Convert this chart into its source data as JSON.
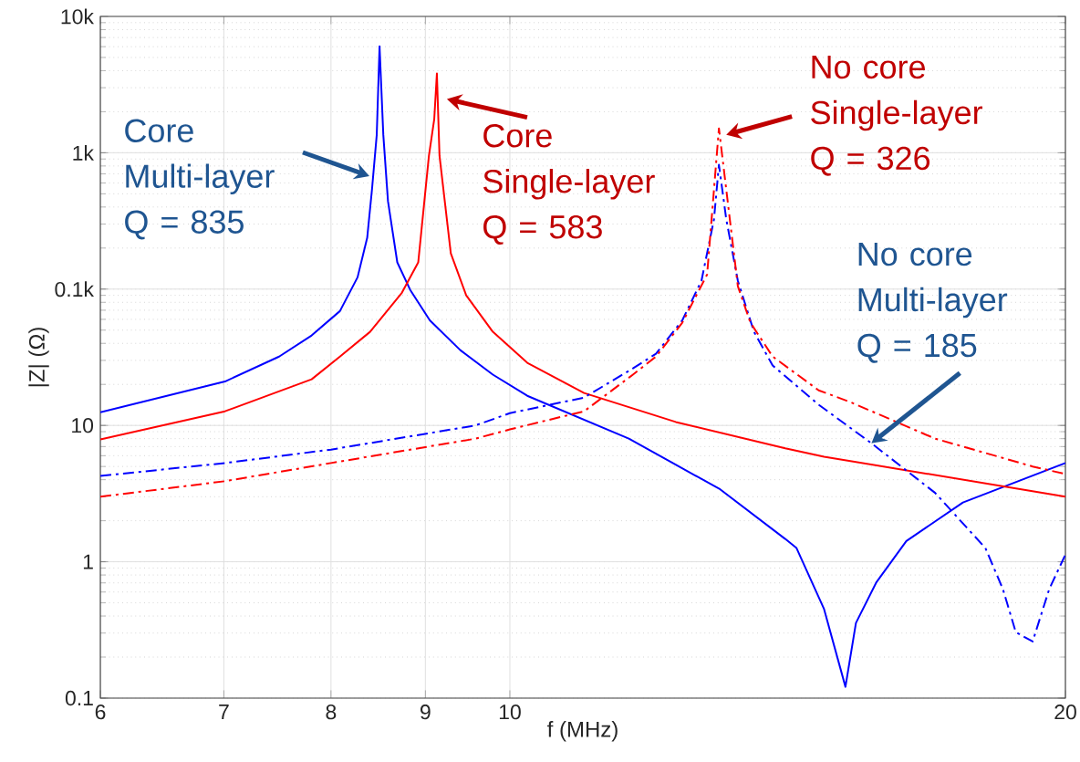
{
  "chart_data": {
    "type": "line",
    "xlabel": "f (MHz)",
    "ylabel": "|Z| (Ω)",
    "log": "xy",
    "grid": true,
    "xlim": [
      6,
      20
    ],
    "xticks": [
      6,
      7,
      8,
      9,
      10,
      20
    ],
    "ylim": [
      0.1,
      10000
    ],
    "yticks": [
      0.1,
      1,
      10,
      {
        "value": 100,
        "label": "0.1k"
      },
      {
        "value": 1000,
        "label": "1k"
      },
      {
        "value": 10000,
        "label": "10k"
      }
    ],
    "series": [
      {
        "color": "#0000ff",
        "line_style": "solid",
        "x": [
          6,
          7.01,
          7.5,
          7.81,
          8.09,
          8.27,
          8.37,
          8.42,
          8.47,
          8.5,
          8.54,
          8.59,
          8.69,
          8.83,
          9.05,
          9.4,
          9.79,
          10.22,
          11.6,
          13.0,
          14.1,
          14.3,
          14.8,
          15.2,
          15.4,
          15.8,
          16.4,
          17.6,
          20
        ],
        "values": [
          12.5,
          21,
          32,
          45.7,
          69,
          122,
          238,
          537,
          1350,
          6030,
          1350,
          440,
          157,
          99,
          59,
          35.7,
          23.6,
          16.5,
          8.0,
          3.4,
          1.47,
          1.26,
          0.45,
          0.121,
          0.356,
          0.71,
          1.42,
          2.72,
          5.3
        ]
      },
      {
        "color": "#ff0000",
        "line_style": "solid",
        "x": [
          6,
          7.01,
          7.81,
          8.09,
          8.4,
          8.74,
          8.92,
          9.04,
          9.1,
          9.13,
          9.16,
          9.29,
          9.47,
          9.79,
          10.22,
          10.97,
          12.3,
          14.1,
          14.8,
          20
        ],
        "values": [
          7.9,
          12.7,
          21.8,
          32,
          48.6,
          94,
          157,
          950,
          1760,
          3810,
          950,
          183,
          90,
          48.6,
          28.8,
          17.3,
          10.6,
          6.8,
          5.9,
          3.0
        ]
      },
      {
        "color": "#0000ff",
        "line_style": "dashdot",
        "x": [
          6,
          7.01,
          8.0,
          9.58,
          10.0,
          10.97,
          11.66,
          12.0,
          12.4,
          12.7,
          12.9,
          12.98,
          13.1,
          13.29,
          13.56,
          13.88,
          14.7,
          15.7,
          17.0,
          18.1,
          18.5,
          18.8,
          19.2,
          19.6,
          20
        ],
        "values": [
          4.26,
          5.3,
          6.65,
          10,
          12.3,
          16,
          26.2,
          33.6,
          59,
          115,
          324,
          816,
          324,
          115,
          48.6,
          27.5,
          14.2,
          7.4,
          3.2,
          1.26,
          0.63,
          0.305,
          0.26,
          0.63,
          1.13
        ]
      },
      {
        "color": "#ff0000",
        "line_style": "dashdot",
        "x": [
          6,
          7.01,
          8.0,
          9.58,
          10.0,
          10.97,
          11.66,
          12.0,
          12.4,
          12.79,
          12.98,
          13.29,
          13.5,
          13.88,
          14.7,
          15.3,
          17.0,
          19.2,
          20
        ],
        "values": [
          3.0,
          3.9,
          5.3,
          8.0,
          9.35,
          12.7,
          23.6,
          32,
          56.7,
          128,
          1510,
          105,
          56.7,
          32,
          18.1,
          14.8,
          8.0,
          5.0,
          4.4
        ]
      }
    ],
    "annotations": [
      "Core Multi-layer Q = 835",
      {
        "text": "Core Single-layer Q = 583",
        "x": 9.13,
        "y": 3810
      },
      {
        "text": "No core Single-layer Q = 326",
        "x": 12.98,
        "y": 1510
      },
      {
        "text": "No core Multi-layer Q = 185",
        "x": 15.7,
        "y": 7.4
      }
    ]
  }
}
